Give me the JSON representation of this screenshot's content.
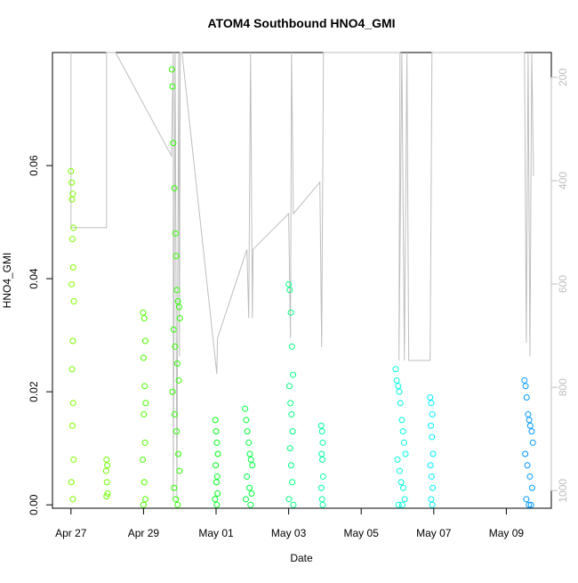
{
  "chart_data": {
    "type": "scatter",
    "title": "ATOM4 Southbound HNO4_GMI",
    "x_label": "Date",
    "y_label": "HNO4_GMI",
    "xlim": [
      -0.51,
      13.24
    ],
    "xticks": [
      {
        "value": 0,
        "label": "Apr 27"
      },
      {
        "value": 2,
        "label": "Apr 29"
      },
      {
        "value": 4,
        "label": "May 01"
      },
      {
        "value": 6,
        "label": "May 03"
      },
      {
        "value": 8,
        "label": "May 05"
      },
      {
        "value": 10,
        "label": "May 07"
      },
      {
        "value": 12,
        "label": "May 09"
      }
    ],
    "ylim": [
      -0.0006,
      0.08
    ],
    "yticks": [
      {
        "value": 0,
        "label": "0.00"
      },
      0.02,
      0.04,
      0.06
    ],
    "y2lim": [
      1034,
      152
    ],
    "y2ticks": [
      200,
      400,
      600,
      800,
      1000
    ],
    "series": [
      {
        "axis": "y2",
        "color": "#bebebe",
        "x": [
          0,
          0,
          0.98,
          0.98,
          1.23,
          2.77,
          2.82,
          2.82,
          2.87,
          2.92,
          2.97,
          2.99,
          3.01,
          3.06,
          4.02,
          4.04,
          4.85,
          4.9,
          4.95,
          5.0,
          5.02,
          6.0,
          6.05,
          6.08,
          6.13,
          6.86,
          6.91,
          6.96,
          9.07,
          9.04,
          9.12,
          9.19,
          9.26,
          9.31,
          9.9,
          9.95,
          12.5,
          12.55,
          12.6,
          12.65,
          12.7,
          12.75
        ],
        "values": [
          152,
          491,
          491,
          152,
          152,
          352,
          152,
          1015,
          152,
          1015,
          152,
          740,
          152,
          152,
          774,
          705,
          533,
          666,
          152,
          666,
          533,
          464,
          705,
          152,
          464,
          403,
          722,
          152,
          152,
          748,
          152,
          748,
          152,
          748,
          748,
          152,
          152,
          714,
          152,
          740,
          152,
          391
        ]
      },
      {
        "color": "#7fff00",
        "x": [
          0.0,
          0.02,
          0.05,
          0.03,
          0.07,
          0.04,
          0.06,
          0.02,
          0.08,
          0.05,
          0.03,
          0.06,
          0.04,
          0.07,
          0.01,
          0.05
        ],
        "values": [
          0.059,
          0.057,
          0.055,
          0.054,
          0.049,
          0.047,
          0.042,
          0.039,
          0.036,
          0.029,
          0.024,
          0.018,
          0.014,
          0.008,
          0.004,
          0.001
        ]
      },
      {
        "color": "#70ff00",
        "x": [
          0.98,
          1.0,
          0.97,
          0.99,
          1.01,
          0.98
        ],
        "values": [
          0.008,
          0.007,
          0.006,
          0.004,
          0.002,
          0.0015
        ]
      },
      {
        "color": "#4cff00",
        "x": [
          1.99,
          2.02,
          2.05,
          2.0,
          2.03,
          2.06,
          2.01,
          2.04,
          1.98,
          2.02,
          2.05,
          2.0
        ],
        "values": [
          0.034,
          0.033,
          0.029,
          0.026,
          0.021,
          0.018,
          0.016,
          0.011,
          0.008,
          0.004,
          0.001,
          0.0
        ]
      },
      {
        "color": "#2eff00",
        "x": [
          2.78,
          2.8,
          2.82,
          2.85,
          2.88,
          2.9,
          2.92,
          2.95,
          2.98,
          3.0,
          2.83,
          2.87,
          2.93,
          2.97,
          2.8,
          2.86,
          2.91,
          2.96,
          2.99,
          2.84,
          2.89,
          2.94
        ],
        "values": [
          0.077,
          0.074,
          0.064,
          0.056,
          0.048,
          0.044,
          0.038,
          0.036,
          0.035,
          0.033,
          0.031,
          0.028,
          0.025,
          0.022,
          0.02,
          0.016,
          0.013,
          0.009,
          0.006,
          0.003,
          0.001,
          0.0
        ]
      },
      {
        "color": "#00ff1a",
        "x": [
          3.98,
          4.0,
          4.02,
          4.05,
          3.99,
          4.03,
          4.01,
          4.04,
          3.97,
          4.02
        ],
        "values": [
          0.015,
          0.013,
          0.011,
          0.009,
          0.007,
          0.005,
          0.004,
          0.002,
          0.001,
          0.0
        ]
      },
      {
        "color": "#00ff40",
        "x": [
          4.8,
          4.83,
          4.86,
          4.9,
          4.93,
          4.96,
          5.0,
          4.85,
          4.92,
          4.98,
          4.82,
          4.95
        ],
        "values": [
          0.017,
          0.015,
          0.013,
          0.011,
          0.009,
          0.008,
          0.007,
          0.005,
          0.003,
          0.002,
          0.001,
          0.0
        ]
      },
      {
        "color": "#00ff80",
        "x": [
          6.0,
          6.03,
          6.06,
          6.09,
          6.12,
          6.02,
          6.05,
          6.08,
          6.11,
          6.04,
          6.07,
          6.1,
          6.01,
          6.13
        ],
        "values": [
          0.039,
          0.038,
          0.034,
          0.028,
          0.023,
          0.021,
          0.018,
          0.016,
          0.013,
          0.01,
          0.007,
          0.004,
          0.001,
          0.0
        ]
      },
      {
        "color": "#00ffa0",
        "x": [
          6.9,
          6.92,
          6.94,
          6.91,
          6.93,
          6.95,
          6.9,
          6.92,
          6.94
        ],
        "values": [
          0.014,
          0.013,
          0.011,
          0.009,
          0.008,
          0.005,
          0.003,
          0.001,
          0.0
        ]
      },
      {
        "color": "#00ffe0",
        "x": [
          8.95,
          8.98,
          9.02,
          9.05,
          9.08,
          9.12,
          9.15,
          9.18,
          9.22,
          9.0,
          9.06,
          9.1,
          9.16,
          9.2,
          9.03,
          9.13
        ],
        "values": [
          0.024,
          0.022,
          0.021,
          0.02,
          0.018,
          0.015,
          0.013,
          0.011,
          0.009,
          0.008,
          0.006,
          0.004,
          0.003,
          0.001,
          0.0,
          0.0
        ]
      },
      {
        "color": "#00f0ff",
        "x": [
          9.9,
          9.93,
          9.96,
          9.92,
          9.95,
          9.98,
          9.91,
          9.94,
          9.97,
          9.93,
          9.96
        ],
        "values": [
          0.019,
          0.018,
          0.016,
          0.014,
          0.012,
          0.009,
          0.007,
          0.005,
          0.003,
          0.001,
          0.0
        ]
      },
      {
        "color": "#0099ff",
        "x": [
          12.5,
          12.53,
          12.56,
          12.6,
          12.63,
          12.66,
          12.7,
          12.73,
          12.52,
          12.58,
          12.65,
          12.71,
          12.55,
          12.62,
          12.68
        ],
        "values": [
          0.022,
          0.021,
          0.019,
          0.016,
          0.015,
          0.014,
          0.013,
          0.011,
          0.009,
          0.007,
          0.005,
          0.003,
          0.001,
          0.0,
          0.0
        ]
      }
    ]
  }
}
